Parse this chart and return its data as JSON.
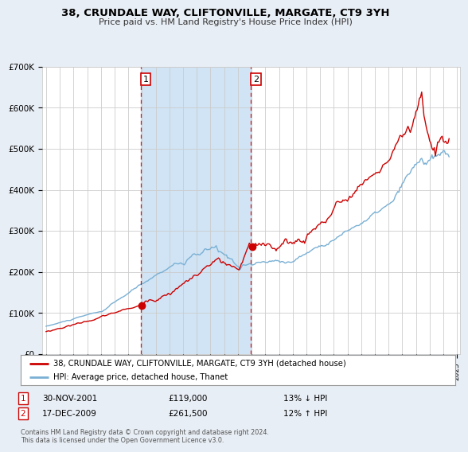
{
  "title": "38, CRUNDALE WAY, CLIFTONVILLE, MARGATE, CT9 3YH",
  "subtitle": "Price paid vs. HM Land Registry's House Price Index (HPI)",
  "ylim": [
    0,
    700000
  ],
  "yticks": [
    0,
    100000,
    200000,
    300000,
    400000,
    500000,
    600000,
    700000
  ],
  "ytick_labels": [
    "£0",
    "£100K",
    "£200K",
    "£300K",
    "£400K",
    "£500K",
    "£600K",
    "£700K"
  ],
  "sale1_year": 2001.917,
  "sale1_price": 119000,
  "sale1_label": "1",
  "sale1_date": "30-NOV-2001",
  "sale1_price_str": "£119,000",
  "sale1_pct": "13% ↓ HPI",
  "sale2_year": 2009.958,
  "sale2_price": 261500,
  "sale2_label": "2",
  "sale2_date": "17-DEC-2009",
  "sale2_price_str": "£261,500",
  "sale2_pct": "12% ↑ HPI",
  "line_color_property": "#cc0000",
  "line_color_hpi": "#7ab0d4",
  "vline_color": "#cc0000",
  "marker_box_color": "#cc0000",
  "legend_label_property": "38, CRUNDALE WAY, CLIFTONVILLE, MARGATE, CT9 3YH (detached house)",
  "legend_label_hpi": "HPI: Average price, detached house, Thanet",
  "footer": "Contains HM Land Registry data © Crown copyright and database right 2024.\nThis data is licensed under the Open Government Licence v3.0.",
  "xlim_left": 1994.7,
  "xlim_right": 2025.2,
  "background_color": "#e8eef5",
  "plot_background": "#ffffff",
  "span_color": "#d0e4f5",
  "grid_color": "#cccccc"
}
